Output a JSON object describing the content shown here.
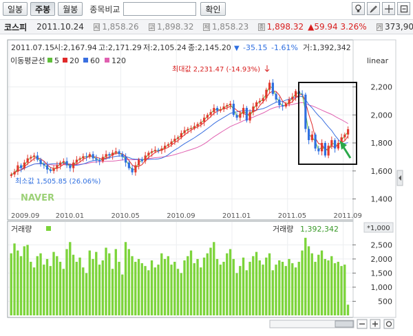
{
  "toolbar": {
    "tabs": [
      {
        "label": "일봉",
        "active": false
      },
      {
        "label": "주봉",
        "active": true
      },
      {
        "label": "월봉",
        "active": false
      }
    ],
    "compare_label": "종목비교",
    "compare_placeholder": "",
    "confirm_label": "확인",
    "icons": [
      "bulb-icon",
      "draw-icon",
      "crosshair-icon",
      "settings-icon"
    ]
  },
  "info": {
    "symbol": "코스피",
    "date": "2011.10.24",
    "open_mark": "시",
    "open": "1,858.26",
    "high_mark": "고",
    "high": "1,898.32",
    "low_mark": "저",
    "low": "1,858.23",
    "close_mark": "종",
    "close": "1,898.32",
    "change": "▲59.94",
    "change_pct": "3.26%",
    "volume_mark": "거",
    "volume": "373,903"
  },
  "cursor": {
    "date": "2011.07.15",
    "open": "시:2,167.94",
    "high": "고:2,171.29",
    "low": "저:2,105.24",
    "close": "종:2,145.20",
    "arrow": "▼",
    "change": "-35.15",
    "change_pct": "-1.61%",
    "volume": "거:1,392,342"
  },
  "colors": {
    "up": "#e23a2e",
    "down": "#2f6fe0",
    "ma5": "#5fbf3a",
    "ma20": "#e02a2a",
    "ma60": "#3a6fe0",
    "ma120": "#e060b0",
    "volume": "#7cd43a",
    "highlight_box": "#111111",
    "annotation_arrow": "#2aa84a"
  },
  "chart_data": {
    "type": "candlestick",
    "title": "",
    "scale_label": "linear",
    "y_ticks": [
      1400,
      1600,
      1800,
      2000,
      2200
    ],
    "ylim": [
      1280,
      2330
    ],
    "x_ticks": [
      "2009.09",
      "2010.01",
      "2010.05",
      "2010.09",
      "2011.01",
      "2011.05",
      "2011.09"
    ],
    "legend": {
      "title": "이동평균선",
      "items": [
        {
          "label": "5",
          "color": "#5fbf3a"
        },
        {
          "label": "20",
          "color": "#e02a2a"
        },
        {
          "label": "60",
          "color": "#3a6fe0"
        },
        {
          "label": "120",
          "color": "#e060b0"
        }
      ]
    },
    "annotations": {
      "max": "최대값 2,231.47 (-14.93%)",
      "min": "최소값 1,505.85 (26.06%)",
      "watermark": "NAVER"
    },
    "weekly_close": [
      1575,
      1595,
      1640,
      1620,
      1660,
      1690,
      1700,
      1710,
      1680,
      1650,
      1640,
      1610,
      1600,
      1620,
      1640,
      1660,
      1670,
      1640,
      1620,
      1660,
      1680,
      1690,
      1705,
      1700,
      1720,
      1690,
      1680,
      1670,
      1700,
      1720,
      1710,
      1730,
      1740,
      1720,
      1700,
      1660,
      1620,
      1590,
      1640,
      1680,
      1670,
      1710,
      1730,
      1740,
      1750,
      1745,
      1760,
      1780,
      1790,
      1810,
      1830,
      1840,
      1870,
      1890,
      1900,
      1905,
      1920,
      1935,
      1950,
      1980,
      2000,
      2020,
      2050,
      2030,
      2040,
      2060,
      2070,
      2080,
      2000,
      1980,
      2010,
      2050,
      1960,
      2020,
      2060,
      2090,
      2100,
      2120,
      2180,
      2230,
      2150,
      2110,
      2070,
      2060,
      2080,
      2110,
      2130,
      2170,
      2150,
      2145,
      1900,
      1820,
      1860,
      1760,
      1740,
      1800,
      1710,
      1780,
      1820,
      1760,
      1800,
      1840,
      1860,
      1898
    ]
  },
  "volume_panel": {
    "label": "거래량",
    "last_label": "거래량",
    "last_value": "1,392,342",
    "multiplier": "*1,000",
    "y_ticks": [
      500,
      1000,
      1500,
      2000,
      2500
    ],
    "ylim": [
      0,
      2850
    ],
    "values": [
      2200,
      2550,
      2300,
      2100,
      2450,
      2500,
      1900,
      1700,
      2100,
      2200,
      1800,
      2000,
      1750,
      2250,
      2100,
      1900,
      1650,
      2350,
      2600,
      2150,
      1900,
      2050,
      1700,
      1500,
      2300,
      2000,
      2250,
      1800,
      1950,
      2400,
      2200,
      1650,
      2350,
      1900,
      1450,
      2600,
      2350,
      2100,
      1900,
      2000,
      1850,
      1750,
      1600,
      1950,
      1700,
      1800,
      2200,
      2000,
      2100,
      1800,
      1900,
      1650,
      1500,
      1950,
      2100,
      2300,
      1850,
      2000,
      1700,
      2050,
      2200,
      2400,
      2600,
      2000,
      1800,
      1900,
      2200,
      2350,
      2000,
      1500,
      1750,
      2050,
      1600,
      1900,
      2100,
      2250,
      1950,
      1800,
      2050,
      2200,
      1600,
      1800,
      1950,
      1900,
      1750,
      2000,
      1850,
      1700,
      1900,
      2300,
      2750,
      2450,
      2200,
      1900,
      2150,
      2300,
      2000,
      1950,
      2100,
      1850,
      1900,
      1750,
      1800,
      380
    ]
  }
}
